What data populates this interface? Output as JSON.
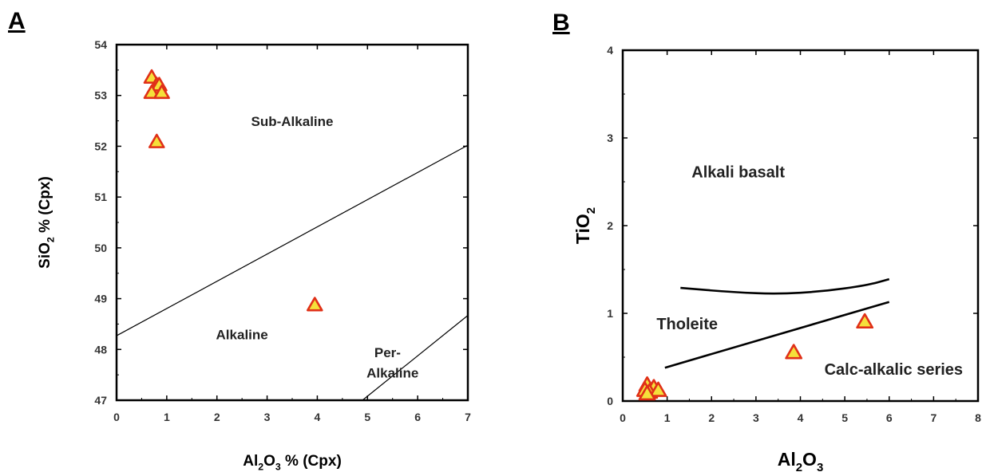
{
  "chart_data": [
    {
      "panel": "A",
      "type": "scatter",
      "xlabel": {
        "main": "Al",
        "sub1": "2",
        "mid": "O",
        "sub2": "3",
        "tail": " % (Cpx)"
      },
      "ylabel": {
        "main": "SiO",
        "sub": "2",
        "tail": " % (Cpx)"
      },
      "xlim": [
        0,
        7
      ],
      "ylim": [
        47,
        54
      ],
      "xticks": [
        "0",
        "1",
        "2",
        "3",
        "4",
        "5",
        "6",
        "7"
      ],
      "yticks": [
        "47",
        "48",
        "49",
        "50",
        "51",
        "52",
        "53",
        "54"
      ],
      "series": [
        {
          "marker": "triangle",
          "color": "#e03018",
          "fill": "#f5e03a",
          "points": [
            [
              0.7,
              53.35
            ],
            [
              0.8,
              53.2
            ],
            [
              0.75,
              53.1
            ],
            [
              0.85,
              53.2
            ],
            [
              0.7,
              53.05
            ],
            [
              0.9,
              53.05
            ],
            [
              0.8,
              52.08
            ],
            [
              3.95,
              48.87
            ]
          ]
        }
      ],
      "boundaries": [
        {
          "points": [
            [
              0,
              48.27
            ],
            [
              7,
              52.02
            ]
          ]
        },
        {
          "points": [
            [
              4.9,
              47.0
            ],
            [
              7,
              48.67
            ]
          ]
        }
      ],
      "regions": [
        {
          "label": "Sub-Alkaline",
          "x": 3.5,
          "y": 52.4
        },
        {
          "label": "Alkaline",
          "x": 2.5,
          "y": 48.2
        },
        {
          "label": "Per-",
          "x": 5.4,
          "y": 47.85
        },
        {
          "label": "Alkaline",
          "x": 5.5,
          "y": 47.45
        }
      ]
    },
    {
      "panel": "B",
      "type": "scatter",
      "xlabel": {
        "main": "Al",
        "sub1": "2",
        "mid": "O",
        "sub2": "3"
      },
      "ylabel": {
        "main": "TiO",
        "sub": "2"
      },
      "xlim": [
        0,
        8
      ],
      "ylim": [
        0,
        4
      ],
      "xticks": [
        "0",
        "1",
        "2",
        "3",
        "4",
        "5",
        "6",
        "7",
        "8"
      ],
      "yticks": [
        "0",
        "1",
        "2",
        "3",
        "4"
      ],
      "series": [
        {
          "marker": "triangle",
          "color": "#e03018",
          "fill": "#f5e03a",
          "points": [
            [
              0.55,
              0.18
            ],
            [
              0.7,
              0.15
            ],
            [
              0.5,
              0.12
            ],
            [
              0.6,
              0.1
            ],
            [
              0.8,
              0.12
            ],
            [
              0.55,
              0.08
            ],
            [
              3.85,
              0.55
            ],
            [
              5.45,
              0.9
            ]
          ]
        }
      ],
      "boundaries": [
        {
          "points": [
            [
              1.3,
              1.29
            ],
            [
              2.5,
              1.24
            ],
            [
              3.5,
              1.22
            ],
            [
              4.5,
              1.25
            ],
            [
              5.5,
              1.32
            ],
            [
              6.0,
              1.39
            ]
          ]
        },
        {
          "points": [
            [
              0.95,
              0.38
            ],
            [
              6.0,
              1.13
            ]
          ]
        }
      ],
      "regions": [
        {
          "label": "Alkali basalt",
          "x": 2.6,
          "y": 2.55
        },
        {
          "label": "Tholeite",
          "x": 1.45,
          "y": 0.82
        },
        {
          "label": "Calc-alkalic series",
          "x": 6.1,
          "y": 0.3
        }
      ]
    }
  ]
}
